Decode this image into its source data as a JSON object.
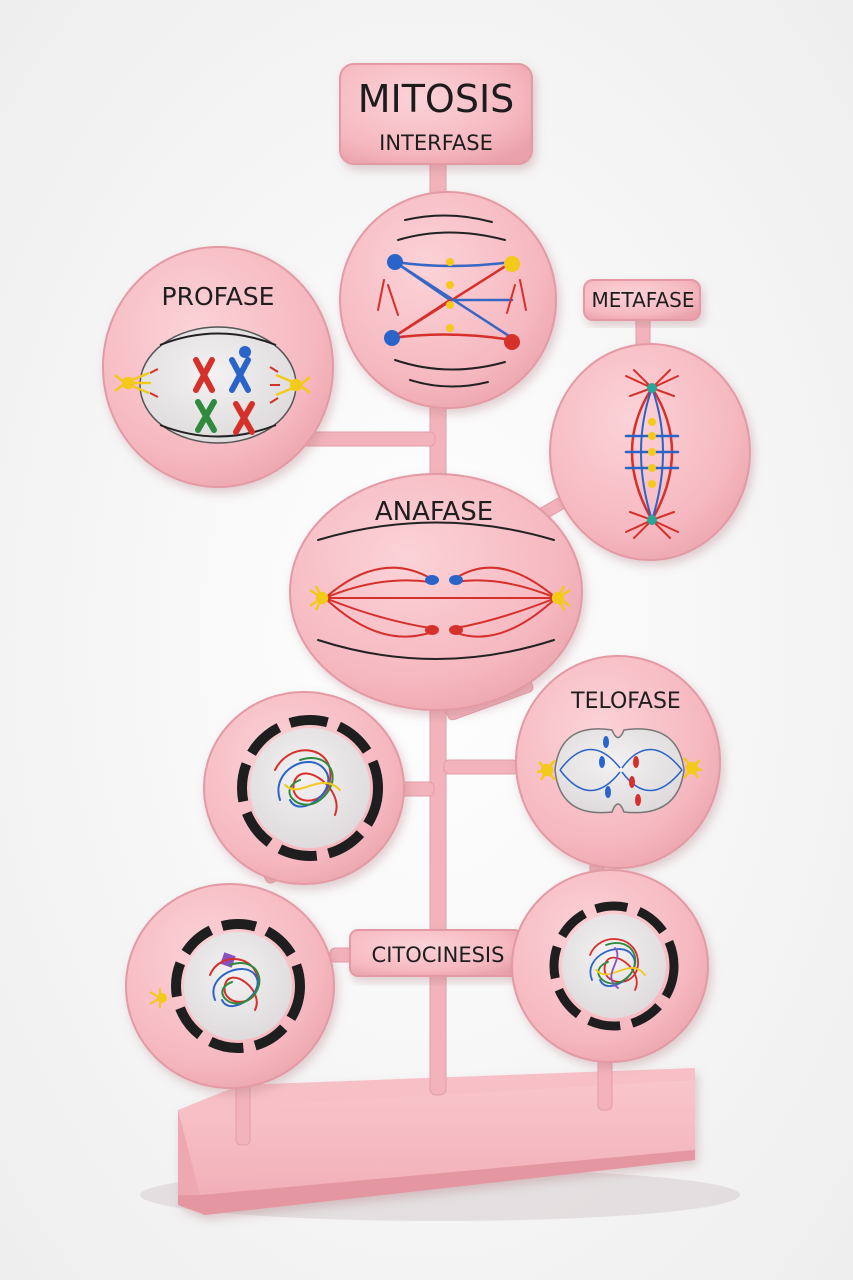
{
  "title": {
    "main": "MITOSIS",
    "sub": "INTERFASE"
  },
  "phases": {
    "profase": "PROFASE",
    "metafase": "METAFASE",
    "anafase": "ANAFASE",
    "telofase": "TELOFASE",
    "citocinesis": "CITOCINESIS"
  },
  "colors": {
    "model_pink": "#f7b9c0",
    "model_edge": "#e49aa4",
    "nucleus_grey": "#e8e5e6",
    "chromosome_red": "#d6302b",
    "chromosome_blue": "#2a64c8",
    "chromosome_green": "#2f8a3e",
    "centrosome_yellow": "#f3c91a"
  }
}
